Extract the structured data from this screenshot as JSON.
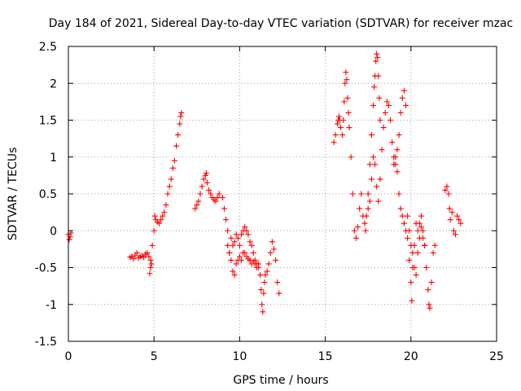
{
  "chart_data": {
    "type": "scatter",
    "title": "Day 184 of 2021, Sidereal Day-to-day VTEC variation (SDTVAR) for receiver mzac",
    "xlabel": "GPS time / hours",
    "ylabel": "SDTVAR / TECUs",
    "xlim": [
      0,
      25
    ],
    "ylim": [
      -1.5,
      2.5
    ],
    "xticks": [
      0,
      5,
      10,
      15,
      20,
      25
    ],
    "yticks": [
      -1.5,
      -1,
      -0.5,
      0,
      0.5,
      1,
      1.5,
      2,
      2.5
    ],
    "xtick_labels": [
      "0",
      "5",
      "10",
      "15",
      "20",
      "25"
    ],
    "ytick_labels": [
      "-1.5",
      "-1",
      "-0.5",
      "0",
      "0.5",
      "1",
      "1.5",
      "2",
      "2.5"
    ],
    "grid": true,
    "marker": "+",
    "color": "#ff0000",
    "series": [
      {
        "name": "seg-start",
        "x": [
          0.0,
          0.05,
          0.1,
          0.15
        ],
        "y": [
          -0.05,
          -0.12,
          -0.08,
          -0.03
        ]
      },
      {
        "name": "seg-am-low",
        "x": [
          3.6,
          3.7,
          3.8,
          3.9,
          4.0,
          4.1,
          4.2,
          4.3,
          4.4,
          4.5,
          4.6,
          4.7,
          4.8,
          4.8,
          4.75,
          4.85
        ],
        "y": [
          -0.36,
          -0.35,
          -0.38,
          -0.33,
          -0.3,
          -0.37,
          -0.35,
          -0.34,
          -0.36,
          -0.32,
          -0.3,
          -0.35,
          -0.4,
          -0.5,
          -0.58,
          -0.45
        ]
      },
      {
        "name": "seg-am-rise",
        "x": [
          4.9,
          5.0,
          5.05,
          5.1,
          5.2,
          5.3,
          5.4,
          5.5,
          5.6,
          5.7,
          5.8,
          5.9,
          6.0,
          6.1,
          6.2,
          6.3,
          6.4,
          6.5,
          6.55,
          6.6
        ],
        "y": [
          -0.2,
          0.0,
          0.2,
          0.15,
          0.12,
          0.1,
          0.15,
          0.2,
          0.25,
          0.35,
          0.5,
          0.6,
          0.7,
          0.85,
          0.95,
          1.15,
          1.3,
          1.45,
          1.55,
          1.6
        ]
      },
      {
        "name": "seg-midday-a",
        "x": [
          7.4,
          7.5,
          7.6,
          7.7,
          7.8,
          7.9,
          8.0,
          8.05,
          8.1,
          8.2,
          8.3,
          8.4,
          8.5,
          8.6,
          8.7,
          8.8,
          9.0,
          9.1,
          9.2,
          9.3,
          9.3,
          9.4
        ],
        "y": [
          0.3,
          0.35,
          0.4,
          0.5,
          0.6,
          0.7,
          0.75,
          0.78,
          0.65,
          0.55,
          0.5,
          0.45,
          0.42,
          0.4,
          0.45,
          0.5,
          0.45,
          0.3,
          0.15,
          0.0,
          -0.2,
          -0.3
        ]
      },
      {
        "name": "seg-midday-b",
        "x": [
          9.5,
          9.6,
          9.7,
          9.8,
          9.9,
          10.0,
          10.1,
          10.2,
          10.3,
          10.4,
          10.5,
          10.6,
          10.7,
          10.8,
          10.9,
          11.0
        ],
        "y": [
          -0.1,
          -0.2,
          -0.15,
          -0.05,
          -0.1,
          -0.2,
          -0.05,
          0.0,
          0.05,
          0.0,
          -0.05,
          -0.15,
          -0.2,
          -0.3,
          -0.4,
          -0.45
        ]
      },
      {
        "name": "seg-midday-c",
        "x": [
          9.4,
          9.5,
          9.6,
          9.7,
          9.8,
          9.9,
          10.0,
          10.1,
          10.2,
          10.3,
          10.4,
          10.5,
          10.6,
          10.7,
          10.8,
          10.9,
          11.0,
          11.1
        ],
        "y": [
          -0.3,
          -0.4,
          -0.55,
          -0.6,
          -0.45,
          -0.4,
          -0.35,
          -0.4,
          -0.3,
          -0.3,
          -0.35,
          -0.38,
          -0.4,
          -0.45,
          -0.42,
          -0.45,
          -0.5,
          -0.45
        ]
      },
      {
        "name": "seg-midday-dip",
        "x": [
          11.1,
          11.2,
          11.25,
          11.3,
          11.35,
          11.4,
          11.45,
          11.5,
          11.6,
          11.7,
          11.8,
          11.9,
          12.0,
          12.1,
          12.2,
          12.3
        ],
        "y": [
          -0.5,
          -0.6,
          -0.8,
          -1.0,
          -1.1,
          -0.85,
          -0.7,
          -0.6,
          -0.55,
          -0.45,
          -0.3,
          -0.15,
          -0.25,
          -0.4,
          -0.7,
          -0.85
        ]
      },
      {
        "name": "seg-eve-a",
        "x": [
          15.5,
          15.6,
          15.7,
          15.75,
          15.8,
          15.85,
          15.9,
          16.0,
          16.05,
          16.1,
          16.15,
          16.2,
          16.25,
          16.3,
          16.35,
          16.4,
          16.5,
          16.6,
          16.7,
          16.8,
          16.9
        ],
        "y": [
          1.2,
          1.3,
          1.45,
          1.5,
          1.55,
          1.5,
          1.4,
          1.3,
          1.5,
          1.75,
          2.0,
          2.15,
          2.05,
          1.8,
          1.6,
          1.4,
          1.0,
          0.5,
          0.0,
          -0.1,
          0.05
        ]
      },
      {
        "name": "seg-eve-b",
        "x": [
          17.0,
          17.1,
          17.2,
          17.3,
          17.35,
          17.4,
          17.5,
          17.6,
          17.7,
          17.8,
          17.85,
          17.9,
          17.95,
          18.0,
          18.05,
          18.1,
          18.15,
          18.2
        ],
        "y": [
          0.3,
          0.5,
          0.2,
          0.1,
          0.0,
          0.2,
          0.5,
          0.9,
          1.3,
          1.7,
          1.95,
          2.1,
          2.3,
          2.4,
          2.35,
          2.1,
          1.8,
          1.5
        ]
      },
      {
        "name": "seg-eve-c",
        "x": [
          17.5,
          17.6,
          17.7,
          17.8,
          17.9,
          18.0,
          18.1,
          18.2,
          18.3,
          18.4,
          18.5,
          18.6,
          18.7,
          18.8,
          18.9,
          19.0,
          19.1,
          19.2,
          19.3,
          19.4,
          19.5,
          19.6,
          19.7
        ],
        "y": [
          0.3,
          0.4,
          0.7,
          1.0,
          0.9,
          0.6,
          0.4,
          0.7,
          1.1,
          1.4,
          1.6,
          1.75,
          1.7,
          1.5,
          1.2,
          1.0,
          0.9,
          1.1,
          1.3,
          1.6,
          1.8,
          1.9,
          1.7
        ]
      },
      {
        "name": "seg-eve-d",
        "x": [
          19.0,
          19.1,
          19.2,
          19.3,
          19.4,
          19.5,
          19.6,
          19.7,
          19.8,
          19.9,
          20.0,
          20.05,
          20.1,
          20.2,
          20.3,
          20.4,
          20.5,
          20.6,
          20.7,
          20.8
        ],
        "y": [
          0.9,
          1.0,
          0.8,
          0.5,
          0.3,
          0.2,
          0.1,
          0.0,
          -0.1,
          -0.4,
          -0.7,
          -0.95,
          -0.5,
          -0.2,
          0.1,
          0.0,
          -0.1,
          0.05,
          -0.1,
          -0.2
        ]
      },
      {
        "name": "seg-eve-e",
        "x": [
          19.8,
          19.9,
          20.0,
          20.1,
          20.2,
          20.3,
          20.4,
          20.5,
          20.6,
          20.7,
          20.8,
          20.9,
          21.0,
          21.05,
          21.1,
          21.2,
          21.3,
          21.4
        ],
        "y": [
          0.2,
          0.0,
          -0.2,
          -0.3,
          -0.5,
          -0.6,
          -0.3,
          0.1,
          0.2,
          0.0,
          -0.2,
          -0.5,
          -0.8,
          -1.0,
          -1.05,
          -0.7,
          -0.3,
          -0.2
        ]
      },
      {
        "name": "seg-late",
        "x": [
          22.0,
          22.1,
          22.2,
          22.25,
          22.3,
          22.4,
          22.5,
          22.6,
          22.7,
          22.8,
          22.9
        ],
        "y": [
          0.55,
          0.6,
          0.5,
          0.3,
          0.15,
          0.25,
          0.0,
          -0.05,
          0.2,
          0.15,
          0.1
        ]
      }
    ]
  }
}
